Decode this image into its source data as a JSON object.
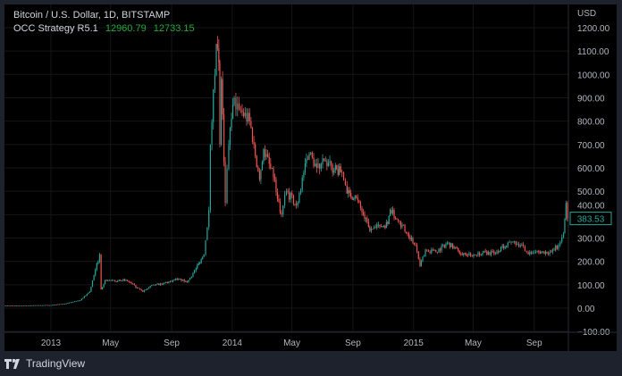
{
  "header": {
    "symbol_line": "Bitcoin / U.S. Dollar, 1D, BITSTAMP",
    "indicator_name": "OCC Strategy R5.1",
    "indicator_values": [
      "12960.79",
      "12733.15"
    ]
  },
  "price_axis": {
    "currency": "USD",
    "last_price_label": "383.53"
  },
  "footer": {
    "brand": "TradingView"
  },
  "colors": {
    "up": "#26a69a",
    "down": "#ef5350",
    "background": "#000000",
    "frame": "#1e222d",
    "indicator_values": "#22ab3a"
  },
  "chart_data": {
    "type": "candlestick",
    "title": "Bitcoin / U.S. Dollar, 1D, BITSTAMP",
    "ylabel": "USD",
    "ylim": [
      -100,
      1200
    ],
    "yticks": [
      "1200.00",
      "1100.00",
      "1000.00",
      "900.00",
      "800.00",
      "700.00",
      "600.00",
      "500.00",
      "400.00",
      "300.00",
      "200.00",
      "100.00",
      "0.00",
      "−100.00"
    ],
    "ytick_values": [
      1200,
      1100,
      1000,
      900,
      800,
      700,
      600,
      500,
      400,
      300,
      200,
      100,
      0,
      -100
    ],
    "xticks": [
      {
        "label": "2013",
        "date": "2013-01-01"
      },
      {
        "label": "May",
        "date": "2013-05-01"
      },
      {
        "label": "Sep",
        "date": "2013-09-01"
      },
      {
        "label": "2014",
        "date": "2014-01-01"
      },
      {
        "label": "May",
        "date": "2014-05-01"
      },
      {
        "label": "Sep",
        "date": "2014-09-01"
      },
      {
        "label": "2015",
        "date": "2015-01-01"
      },
      {
        "label": "May",
        "date": "2015-05-01"
      },
      {
        "label": "Sep",
        "date": "2015-09-01"
      }
    ],
    "grid": true,
    "last_price": 383.53,
    "approx_closes": [
      [
        "2012-09-15",
        11
      ],
      [
        "2012-11-01",
        11
      ],
      [
        "2013-01-01",
        13
      ],
      [
        "2013-02-01",
        20
      ],
      [
        "2013-03-01",
        34
      ],
      [
        "2013-03-20",
        70
      ],
      [
        "2013-04-09",
        230
      ],
      [
        "2013-04-12",
        80
      ],
      [
        "2013-04-20",
        120
      ],
      [
        "2013-05-10",
        115
      ],
      [
        "2013-06-01",
        120
      ],
      [
        "2013-07-05",
        70
      ],
      [
        "2013-07-20",
        95
      ],
      [
        "2013-08-15",
        105
      ],
      [
        "2013-09-15",
        125
      ],
      [
        "2013-10-02",
        110
      ],
      [
        "2013-10-20",
        170
      ],
      [
        "2013-11-05",
        230
      ],
      [
        "2013-11-15",
        420
      ],
      [
        "2013-11-18",
        700
      ],
      [
        "2013-11-30",
        1130
      ],
      [
        "2013-12-05",
        1050
      ],
      [
        "2013-12-07",
        700
      ],
      [
        "2013-12-10",
        980
      ],
      [
        "2013-12-18",
        450
      ],
      [
        "2013-12-25",
        700
      ],
      [
        "2014-01-05",
        900
      ],
      [
        "2014-01-15",
        850
      ],
      [
        "2014-02-05",
        800
      ],
      [
        "2014-02-25",
        550
      ],
      [
        "2014-03-05",
        680
      ],
      [
        "2014-03-25",
        560
      ],
      [
        "2014-04-10",
        400
      ],
      [
        "2014-04-20",
        500
      ],
      [
        "2014-05-10",
        440
      ],
      [
        "2014-05-25",
        580
      ],
      [
        "2014-06-05",
        660
      ],
      [
        "2014-06-20",
        600
      ],
      [
        "2014-07-05",
        630
      ],
      [
        "2014-07-25",
        590
      ],
      [
        "2014-08-10",
        580
      ],
      [
        "2014-08-20",
        490
      ],
      [
        "2014-09-05",
        480
      ],
      [
        "2014-09-22",
        400
      ],
      [
        "2014-10-05",
        330
      ],
      [
        "2014-10-25",
        350
      ],
      [
        "2014-11-10",
        360
      ],
      [
        "2014-11-15",
        420
      ],
      [
        "2014-12-01",
        375
      ],
      [
        "2014-12-20",
        320
      ],
      [
        "2015-01-05",
        270
      ],
      [
        "2015-01-14",
        180
      ],
      [
        "2015-01-25",
        250
      ],
      [
        "2015-02-15",
        240
      ],
      [
        "2015-03-10",
        280
      ],
      [
        "2015-04-01",
        245
      ],
      [
        "2015-04-20",
        225
      ],
      [
        "2015-05-20",
        237
      ],
      [
        "2015-06-15",
        235
      ],
      [
        "2015-07-10",
        280
      ],
      [
        "2015-07-20",
        285
      ],
      [
        "2015-08-10",
        265
      ],
      [
        "2015-08-20",
        230
      ],
      [
        "2015-09-10",
        240
      ],
      [
        "2015-10-05",
        240
      ],
      [
        "2015-10-20",
        270
      ],
      [
        "2015-10-30",
        320
      ],
      [
        "2015-11-04",
        450
      ],
      [
        "2015-11-07",
        383.53
      ]
    ]
  }
}
